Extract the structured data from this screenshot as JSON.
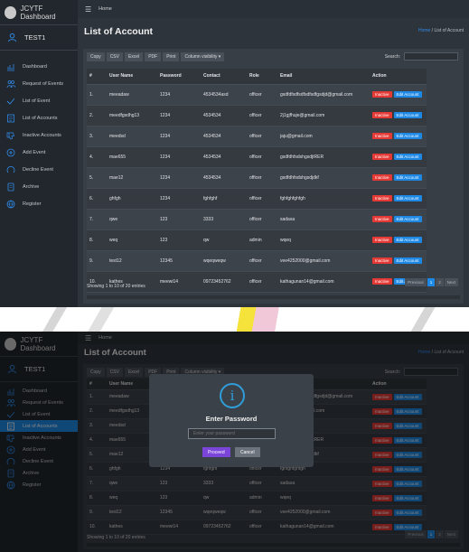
{
  "brand": {
    "title": "JCYTF Dashboard"
  },
  "user": {
    "name": "TEST1"
  },
  "topbar": {
    "home": "Home"
  },
  "sidebar": {
    "items": [
      {
        "label": "Dashboard",
        "icon": "bar-chart-icon"
      },
      {
        "label": "Request of Events",
        "icon": "users-icon"
      },
      {
        "label": "List of Event",
        "icon": "check-icon"
      },
      {
        "label": "List of Accounts",
        "icon": "list-icon"
      },
      {
        "label": "Inactive Accounts",
        "icon": "thumbs-down-icon"
      },
      {
        "label": "Add Event",
        "icon": "plus-circle-icon"
      },
      {
        "label": "Decline Event",
        "icon": "circle-icon"
      },
      {
        "label": "Archive",
        "icon": "document-icon"
      },
      {
        "label": "Register",
        "icon": "globe-icon"
      }
    ]
  },
  "page": {
    "title": "List of Account",
    "breadcrumb_home": "Home",
    "breadcrumb_sep": " / ",
    "breadcrumb_current": "List of Account"
  },
  "toolbar": {
    "copy": "Copy",
    "csv": "CSV",
    "excel": "Excel",
    "pdf": "PDF",
    "print": "Print",
    "colvis": "Column visibility ▾",
    "search_label": "Search:"
  },
  "table": {
    "columns": [
      "#",
      "User Name",
      "Password",
      "Contact",
      "Role",
      "Email",
      "Action"
    ],
    "rows": [
      [
        "1.",
        "meeadaw",
        "1234",
        "4534534asd",
        "officer",
        "gsdfdfsdfsdfsdfsdfgsdjd@gmail.com"
      ],
      [
        "2.",
        "meedfgsdhg13",
        "1234",
        "4534534",
        "officer",
        "2j1gjfhuje@gmail.com"
      ],
      [
        "3.",
        "meedsd",
        "1234",
        "4534534",
        "officer",
        "jaju@gmail.com"
      ],
      [
        "4.",
        "mae655",
        "1234",
        "4534534",
        "officer",
        "gsdfdhfsdshgsdjtRER"
      ],
      [
        "5.",
        "mae12",
        "1234",
        "4534534",
        "officer",
        "gsdfdhfsdshgsdjdkf"
      ],
      [
        "6.",
        "ghfgh",
        "1234",
        "fghfghf",
        "officer",
        "fghfghfghfgh"
      ],
      [
        "7.",
        "qwe",
        "123",
        "3333",
        "officer",
        "sadasa"
      ],
      [
        "8.",
        "weq",
        "123",
        "qw",
        "admin",
        "wqeq"
      ],
      [
        "9.",
        "test12",
        "12345",
        "wqeqweqw",
        "officer",
        "vee4252000@gmail.com"
      ],
      [
        "10.",
        "kathes",
        "meewi14",
        "09723452762",
        "officer",
        "kathagunan14@gmail.com"
      ]
    ],
    "inactive_label": "Inactive",
    "edit_label": "Edit Account"
  },
  "footer": {
    "info": "Showing 1 to 10 of 20 entries",
    "prev": "Previous",
    "page1": "1",
    "page2": "2",
    "next": "Next"
  },
  "modal": {
    "icon": "i",
    "title": "Enter Password",
    "placeholder": "Enter your password",
    "proceed": "Proceed",
    "cancel": "Cancel"
  },
  "colors": {
    "accent": "#1e88e5",
    "danger": "#e53935",
    "proceed": "#7a45d8",
    "info": "#2f9ed8"
  }
}
